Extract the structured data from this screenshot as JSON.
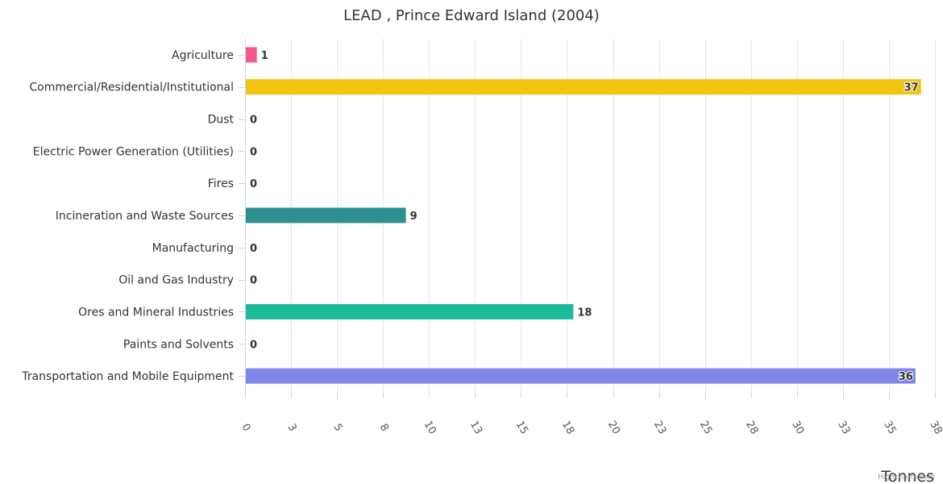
{
  "chart_data": {
    "type": "bar",
    "orientation": "horizontal",
    "title": "LEAD , Prince Edward Island (2004)",
    "xlabel": "Tonnes",
    "ylabel": "",
    "categories": [
      "Agriculture",
      "Commercial/Residential/Institutional",
      "Dust",
      "Electric Power Generation (Utilities)",
      "Fires",
      "Incineration and Waste Sources",
      "Manufacturing",
      "Oil and Gas Industry",
      "Ores and Mineral Industries",
      "Paints and Solvents",
      "Transportation and Mobile Equipment"
    ],
    "values": [
      0.6,
      36.7,
      0,
      0,
      0,
      8.7,
      0,
      0,
      17.8,
      0,
      36.4
    ],
    "data_labels": [
      "1",
      "37",
      "0",
      "0",
      "0",
      "9",
      "0",
      "0",
      "18",
      "0",
      "36"
    ],
    "colors": [
      "#f45b8a",
      "#f1c40f",
      "#7cb5ec",
      "#7cb5ec",
      "#7cb5ec",
      "#2b908f",
      "#7cb5ec",
      "#7cb5ec",
      "#1abc9c",
      "#7cb5ec",
      "#8085e9"
    ],
    "xlim": [
      0,
      37.5
    ],
    "ticks": [
      0,
      2.5,
      5,
      7.5,
      10,
      12.5,
      15,
      17.5,
      20,
      22.5,
      25,
      27.5,
      30,
      32.5,
      35,
      37.5
    ],
    "tick_labels": [
      "0",
      "3",
      "5",
      "8",
      "10",
      "13",
      "15",
      "18",
      "20",
      "23",
      "25",
      "28",
      "30",
      "33",
      "35",
      "38"
    ],
    "grid": true,
    "legend": "none"
  },
  "credit": "Highcharts.com"
}
